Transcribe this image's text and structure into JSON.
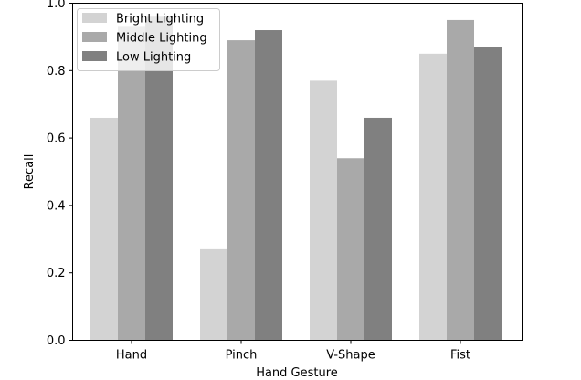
{
  "chart_data": {
    "type": "bar",
    "categories": [
      "Hand",
      "Pinch",
      "V-Shape",
      "Fist"
    ],
    "series": [
      {
        "name": "Bright Lighting",
        "values": [
          0.66,
          0.27,
          0.77,
          0.85
        ],
        "color": "#d3d3d3"
      },
      {
        "name": "Middle Lighting",
        "values": [
          0.93,
          0.89,
          0.54,
          0.95
        ],
        "color": "#a9a9a9"
      },
      {
        "name": "Low Lighting",
        "values": [
          0.96,
          0.92,
          0.66,
          0.87
        ],
        "color": "#808080"
      }
    ],
    "title": "",
    "xlabel": "Hand Gesture",
    "ylabel": "Recall",
    "ylim": [
      0,
      1.0
    ],
    "yticks": [
      "0.0",
      "0.2",
      "0.4",
      "0.6",
      "0.8",
      "1.0"
    ],
    "grid": false,
    "legend_position": "upper-left"
  }
}
